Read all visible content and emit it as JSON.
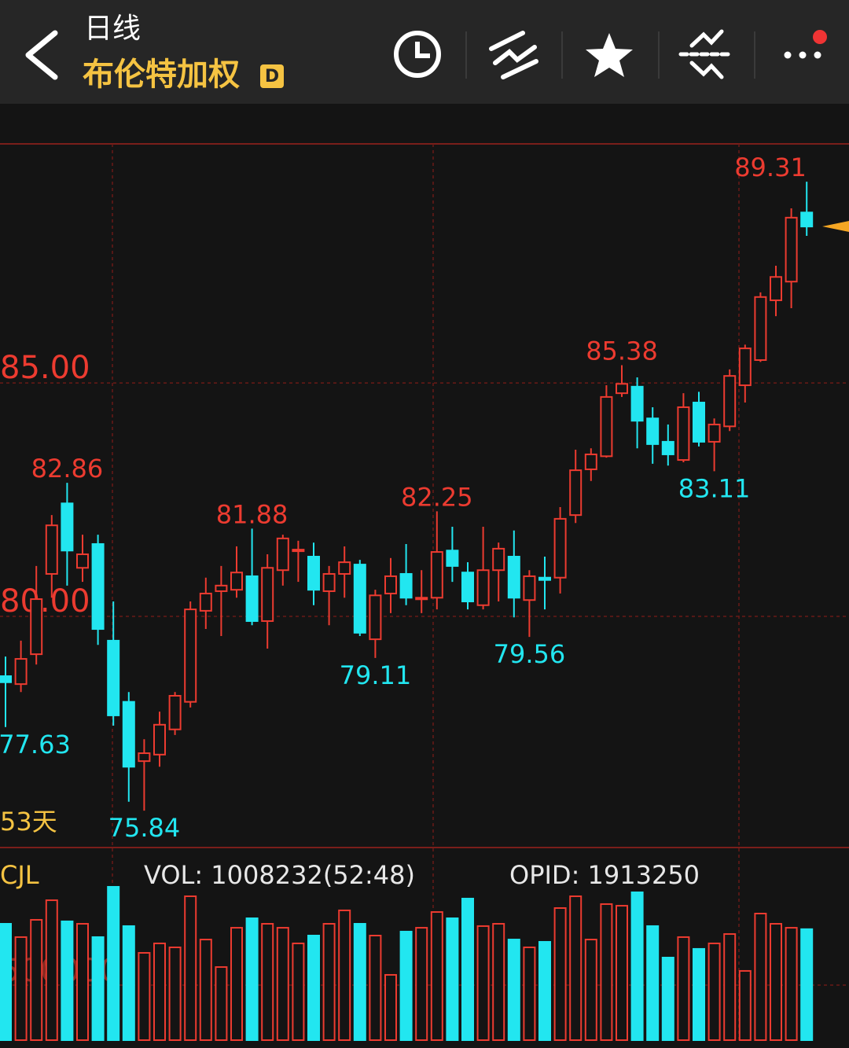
{
  "header": {
    "period": "日线",
    "title": "布伦特加权",
    "badge": "D"
  },
  "chart_data": [
    {
      "type": "candlestick",
      "open": [
        78.72,
        78.55,
        79.19,
        80.91,
        82.42,
        81.04,
        81.55,
        79.48,
        78.17,
        76.9,
        77.04,
        77.58,
        78.17,
        80.12,
        80.54,
        80.57,
        80.86,
        79.9,
        80.99,
        81.4,
        81.28,
        80.54,
        80.91,
        81.11,
        79.51,
        80.49,
        80.91,
        80.37,
        80.4,
        81.41,
        80.94,
        80.24,
        80.99,
        81.28,
        80.35,
        80.83,
        80.83,
        82.17,
        83.15,
        83.43,
        84.78,
        84.92,
        84.24,
        83.74,
        83.35,
        84.58,
        83.74,
        84.07,
        84.95,
        85.49,
        86.77,
        87.17,
        88.65
      ],
      "high": [
        79.14,
        79.48,
        81.08,
        82.17,
        82.86,
        81.75,
        81.75,
        80.32,
        78.38,
        77.37,
        77.96,
        78.38,
        80.32,
        80.83,
        81.08,
        81.5,
        81.88,
        81.33,
        81.75,
        81.62,
        81.58,
        81.08,
        81.5,
        81.21,
        80.57,
        81.25,
        81.55,
        80.99,
        82.25,
        81.92,
        81.16,
        81.92,
        81.58,
        81.84,
        80.99,
        81.28,
        82.34,
        83.57,
        83.6,
        84.95,
        85.38,
        85.12,
        84.48,
        84.11,
        84.78,
        84.81,
        84.24,
        85.29,
        85.82,
        86.94,
        87.51,
        88.74,
        89.31
      ],
      "low": [
        77.63,
        78.38,
        78.97,
        80.4,
        80.66,
        80.74,
        79.39,
        77.66,
        76.03,
        75.84,
        76.78,
        77.46,
        78.05,
        79.73,
        79.58,
        80.4,
        79.81,
        79.31,
        80.66,
        80.74,
        80.24,
        79.81,
        80.4,
        79.58,
        79.11,
        80.07,
        80.24,
        80.07,
        80.15,
        80.74,
        80.15,
        80.15,
        80.32,
        79.98,
        79.56,
        80.15,
        80.49,
        82.0,
        82.9,
        83.4,
        84.7,
        83.6,
        83.27,
        83.23,
        83.3,
        83.64,
        83.11,
        83.97,
        84.58,
        85.45,
        86.43,
        86.6,
        88.15
      ],
      "close": [
        78.59,
        79.09,
        80.37,
        81.95,
        81.41,
        81.33,
        79.73,
        77.88,
        76.78,
        77.07,
        77.68,
        78.3,
        80.15,
        80.49,
        80.66,
        80.94,
        79.9,
        81.04,
        81.67,
        81.43,
        80.57,
        80.91,
        81.16,
        79.65,
        80.45,
        80.86,
        80.4,
        80.4,
        81.38,
        81.08,
        80.32,
        80.99,
        81.45,
        80.4,
        80.86,
        80.78,
        82.09,
        83.13,
        83.47,
        84.7,
        84.98,
        84.19,
        83.69,
        83.47,
        84.48,
        83.74,
        84.11,
        85.15,
        85.74,
        86.84,
        87.27,
        88.54,
        88.35
      ],
      "high_marks": [
        82.86,
        81.88,
        82.25,
        85.38,
        89.31
      ],
      "low_marks": [
        77.63,
        75.84,
        79.11,
        79.56,
        83.11
      ],
      "ylim": [
        75.05,
        90.12
      ],
      "yticks": [
        {
          "value": 85,
          "label": "85.00"
        },
        {
          "value": 80,
          "label": "80.00"
        }
      ],
      "up_color": "#ec3b30",
      "down_color": "#22e6f0",
      "days_label": "53天"
    },
    {
      "type": "bar",
      "title": "CJL",
      "values": [
        1057000,
        936000,
        1093000,
        1271000,
        1079000,
        1057000,
        936000,
        1393000,
        1036000,
        793000,
        879000,
        843000,
        1307000,
        914000,
        664000,
        1021000,
        1107000,
        1057000,
        1021000,
        879000,
        950000,
        1057000,
        1179000,
        1057000,
        950000,
        593000,
        986000,
        1021000,
        1164000,
        1107000,
        1286000,
        1036000,
        1057000,
        914000,
        843000,
        893000,
        1200000,
        1307000,
        914000,
        1236000,
        1221000,
        1343000,
        1036000,
        750000,
        936000,
        829000,
        879000,
        964000,
        629000,
        1150000,
        1057000,
        1021000,
        1008232
      ],
      "ylim": [
        0,
        1750000
      ],
      "yticks": [
        500000
      ],
      "texts": [
        "VOL: 1008232(52:48)",
        "OPID: 1913250"
      ]
    }
  ]
}
